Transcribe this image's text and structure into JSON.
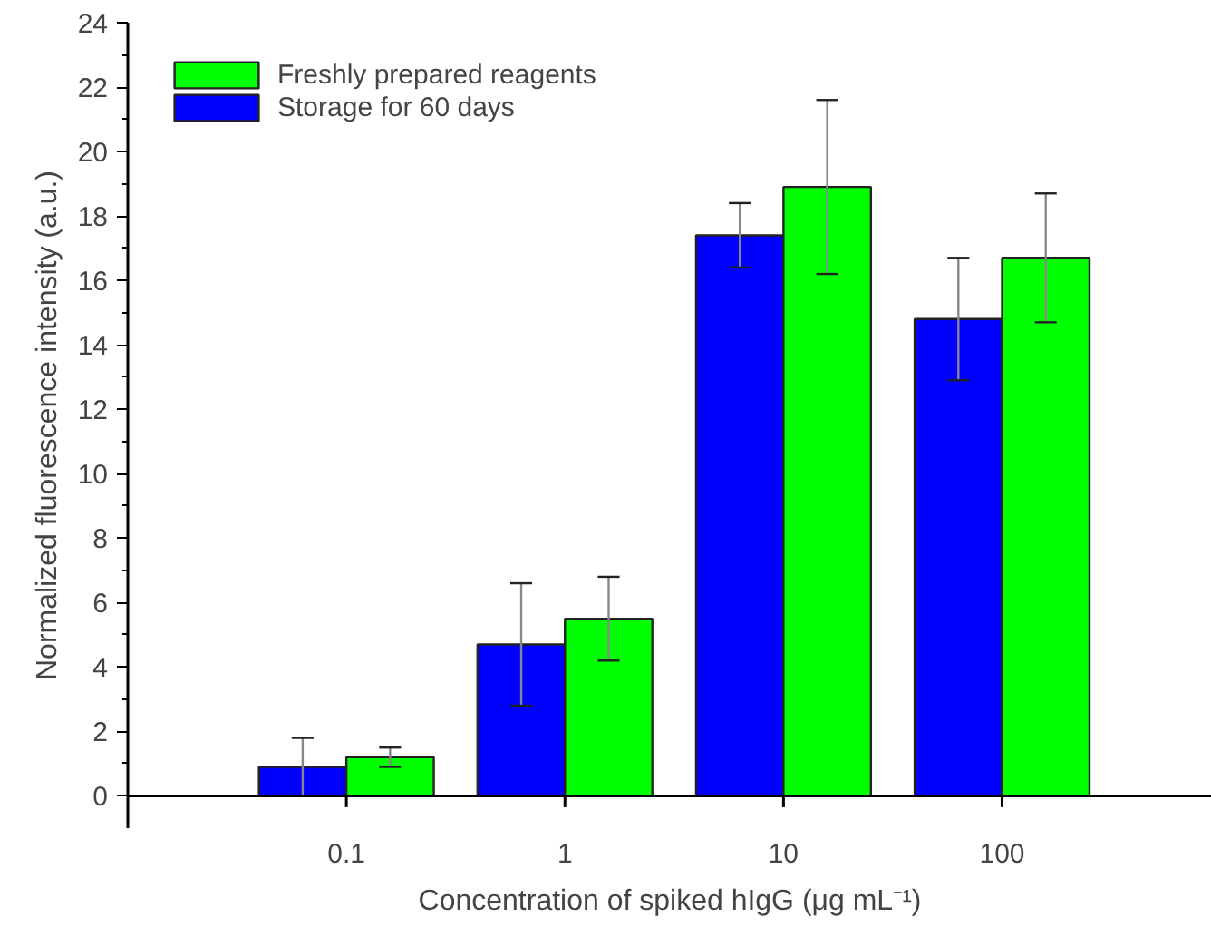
{
  "chart_data": {
    "type": "bar",
    "xlabel": "Concentration of spiked hIgG (μg mL⁻¹)",
    "ylabel": "Normalized fluorescence intensity (a.u.)",
    "categories": [
      "0.1",
      "1",
      "10",
      "100"
    ],
    "series": [
      {
        "name": "Storage for 60 days",
        "color": "#0000ff",
        "values": [
          0.9,
          4.7,
          17.4,
          14.8
        ],
        "errors": [
          0.9,
          1.9,
          1.0,
          1.9
        ]
      },
      {
        "name": "Freshly prepared reagents",
        "color": "#00ff00",
        "values": [
          1.2,
          5.5,
          18.9,
          16.7
        ],
        "errors": [
          0.3,
          1.3,
          2.7,
          2.0
        ]
      }
    ],
    "ylim": [
      -1,
      24
    ],
    "yticks": [
      0,
      2,
      4,
      6,
      8,
      10,
      12,
      14,
      16,
      18,
      20,
      22,
      24
    ],
    "grid": false,
    "legend": "top left"
  }
}
